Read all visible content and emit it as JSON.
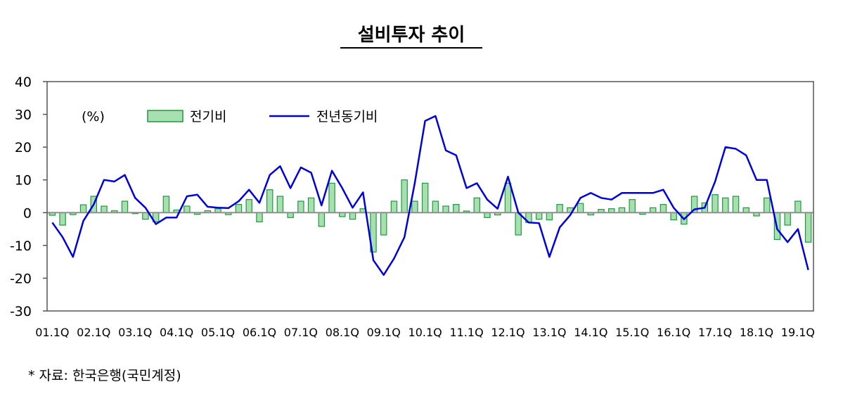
{
  "chart_data": {
    "type": "bar+line",
    "title": "설비투자 추이",
    "unit_label": "(%)",
    "source": "*  자료:  한국은행(국민계정)",
    "ylim": [
      -30,
      40
    ],
    "yticks": [
      40,
      30,
      20,
      10,
      0,
      -10,
      -20,
      -30
    ],
    "xtick_labels": [
      "01.1Q",
      "02.1Q",
      "03.1Q",
      "04.1Q",
      "05.1Q",
      "06.1Q",
      "07.1Q",
      "08.1Q",
      "09.1Q",
      "10.1Q",
      "11.1Q",
      "12.1Q",
      "13.1Q",
      "14.1Q",
      "15.1Q",
      "16.1Q",
      "17.1Q",
      "18.1Q",
      "19.1Q"
    ],
    "legend_position": "top-left",
    "colors": {
      "bar_fill": "#a8dfb0",
      "bar_stroke": "#1e9a3c",
      "line": "#0000dd"
    },
    "series": [
      {
        "name": "전기비",
        "kind": "bar",
        "values": [
          -0.8,
          -3.8,
          -0.6,
          2.4,
          5.0,
          2.0,
          0.6,
          3.5,
          -0.3,
          -2.0,
          -2.8,
          5.0,
          0.8,
          2.0,
          -0.5,
          0.6,
          1.2,
          -0.6,
          2.5,
          4.0,
          -2.8,
          7.0,
          5.0,
          -1.5,
          3.5,
          4.5,
          -4.2,
          9.0,
          -1.2,
          -2.0,
          1.2,
          -12.0,
          -6.8,
          3.5,
          10.0,
          3.5,
          9.0,
          3.5,
          2.0,
          2.5,
          0.5,
          4.5,
          -1.5,
          -0.7,
          9.0,
          -6.8,
          -3.0,
          -2.0,
          -2.2,
          2.5,
          1.5,
          2.8,
          -0.7,
          1.0,
          1.2,
          1.5,
          4.0,
          -0.5,
          1.5,
          2.5,
          -2.2,
          -3.5,
          5.0,
          3.0,
          5.5,
          4.5,
          5.0,
          1.5,
          -1.0,
          4.5,
          -8.2,
          -3.8,
          3.5,
          -9.0
        ]
      },
      {
        "name": "전년동기비",
        "kind": "line",
        "values": [
          -3.0,
          -7.5,
          -13.5,
          -2.5,
          2.5,
          10.0,
          9.5,
          11.5,
          4.5,
          1.5,
          -3.5,
          -1.5,
          -1.5,
          5.0,
          5.5,
          1.8,
          1.5,
          1.4,
          3.5,
          7.0,
          3.0,
          11.5,
          14.2,
          7.5,
          13.8,
          12.2,
          2.2,
          12.8,
          7.5,
          1.5,
          6.2,
          -14.5,
          -19.0,
          -14.0,
          -7.5,
          9.0,
          28.0,
          29.5,
          19.0,
          17.5,
          7.5,
          9.0,
          4.0,
          1.2,
          11.0,
          0.0,
          -3.0,
          -3.2,
          -13.5,
          -4.5,
          -0.8,
          4.5,
          6.0,
          4.5,
          4.0,
          6.0,
          6.0,
          6.0,
          6.0,
          7.0,
          1.5,
          -2.0,
          1.0,
          1.5,
          9.5,
          20.0,
          19.5,
          17.5,
          10.0,
          10.0,
          -5.0,
          -9.0,
          -5.0,
          -17.5
        ]
      }
    ]
  }
}
